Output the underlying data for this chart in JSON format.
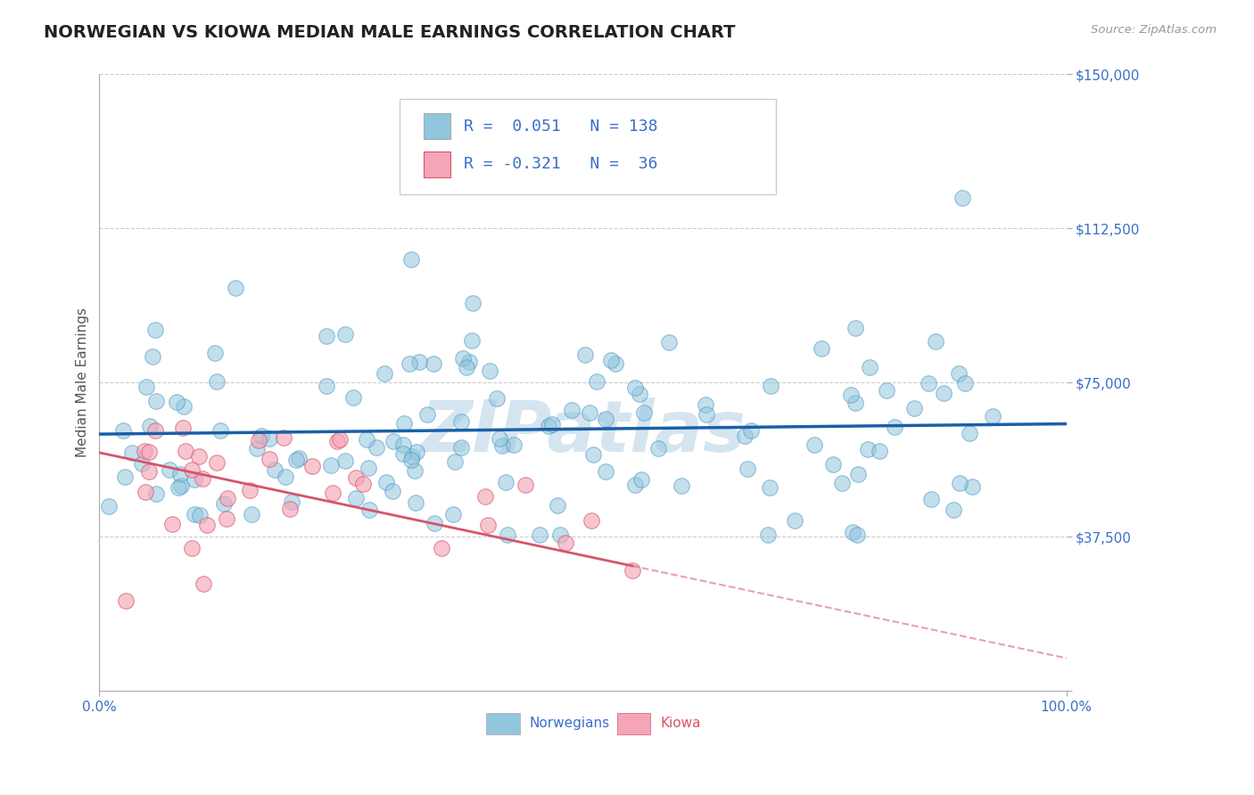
{
  "title": "NORWEGIAN VS KIOWA MEDIAN MALE EARNINGS CORRELATION CHART",
  "source_text": "Source: ZipAtlas.com",
  "ylabel": "Median Male Earnings",
  "xmin": 0.0,
  "xmax": 1.0,
  "ymin": 0,
  "ymax": 150000,
  "yticks": [
    0,
    37500,
    75000,
    112500,
    150000
  ],
  "ytick_labels": [
    "",
    "$37,500",
    "$75,000",
    "$112,500",
    "$150,000"
  ],
  "xtick_labels": [
    "0.0%",
    "100.0%"
  ],
  "norwegian_R": 0.051,
  "norwegian_N": 138,
  "kiowa_R": -0.321,
  "kiowa_N": 36,
  "blue_color": "#92c5de",
  "blue_edge_color": "#4393c3",
  "blue_line_color": "#1a5fa8",
  "pink_color": "#f4a6b8",
  "pink_edge_color": "#d6546a",
  "pink_line_color": "#d6546a",
  "watermark_text": "ZIPatlas",
  "watermark_color": "#d5e5f0",
  "legend_blue_label": "Norwegians",
  "legend_pink_label": "Kiowa",
  "background_color": "#ffffff",
  "grid_color": "#cccccc",
  "title_fontsize": 14,
  "axis_label_color": "#3a6fca",
  "legend_text_color": "#333333",
  "legend_value_color": "#3a6fca"
}
